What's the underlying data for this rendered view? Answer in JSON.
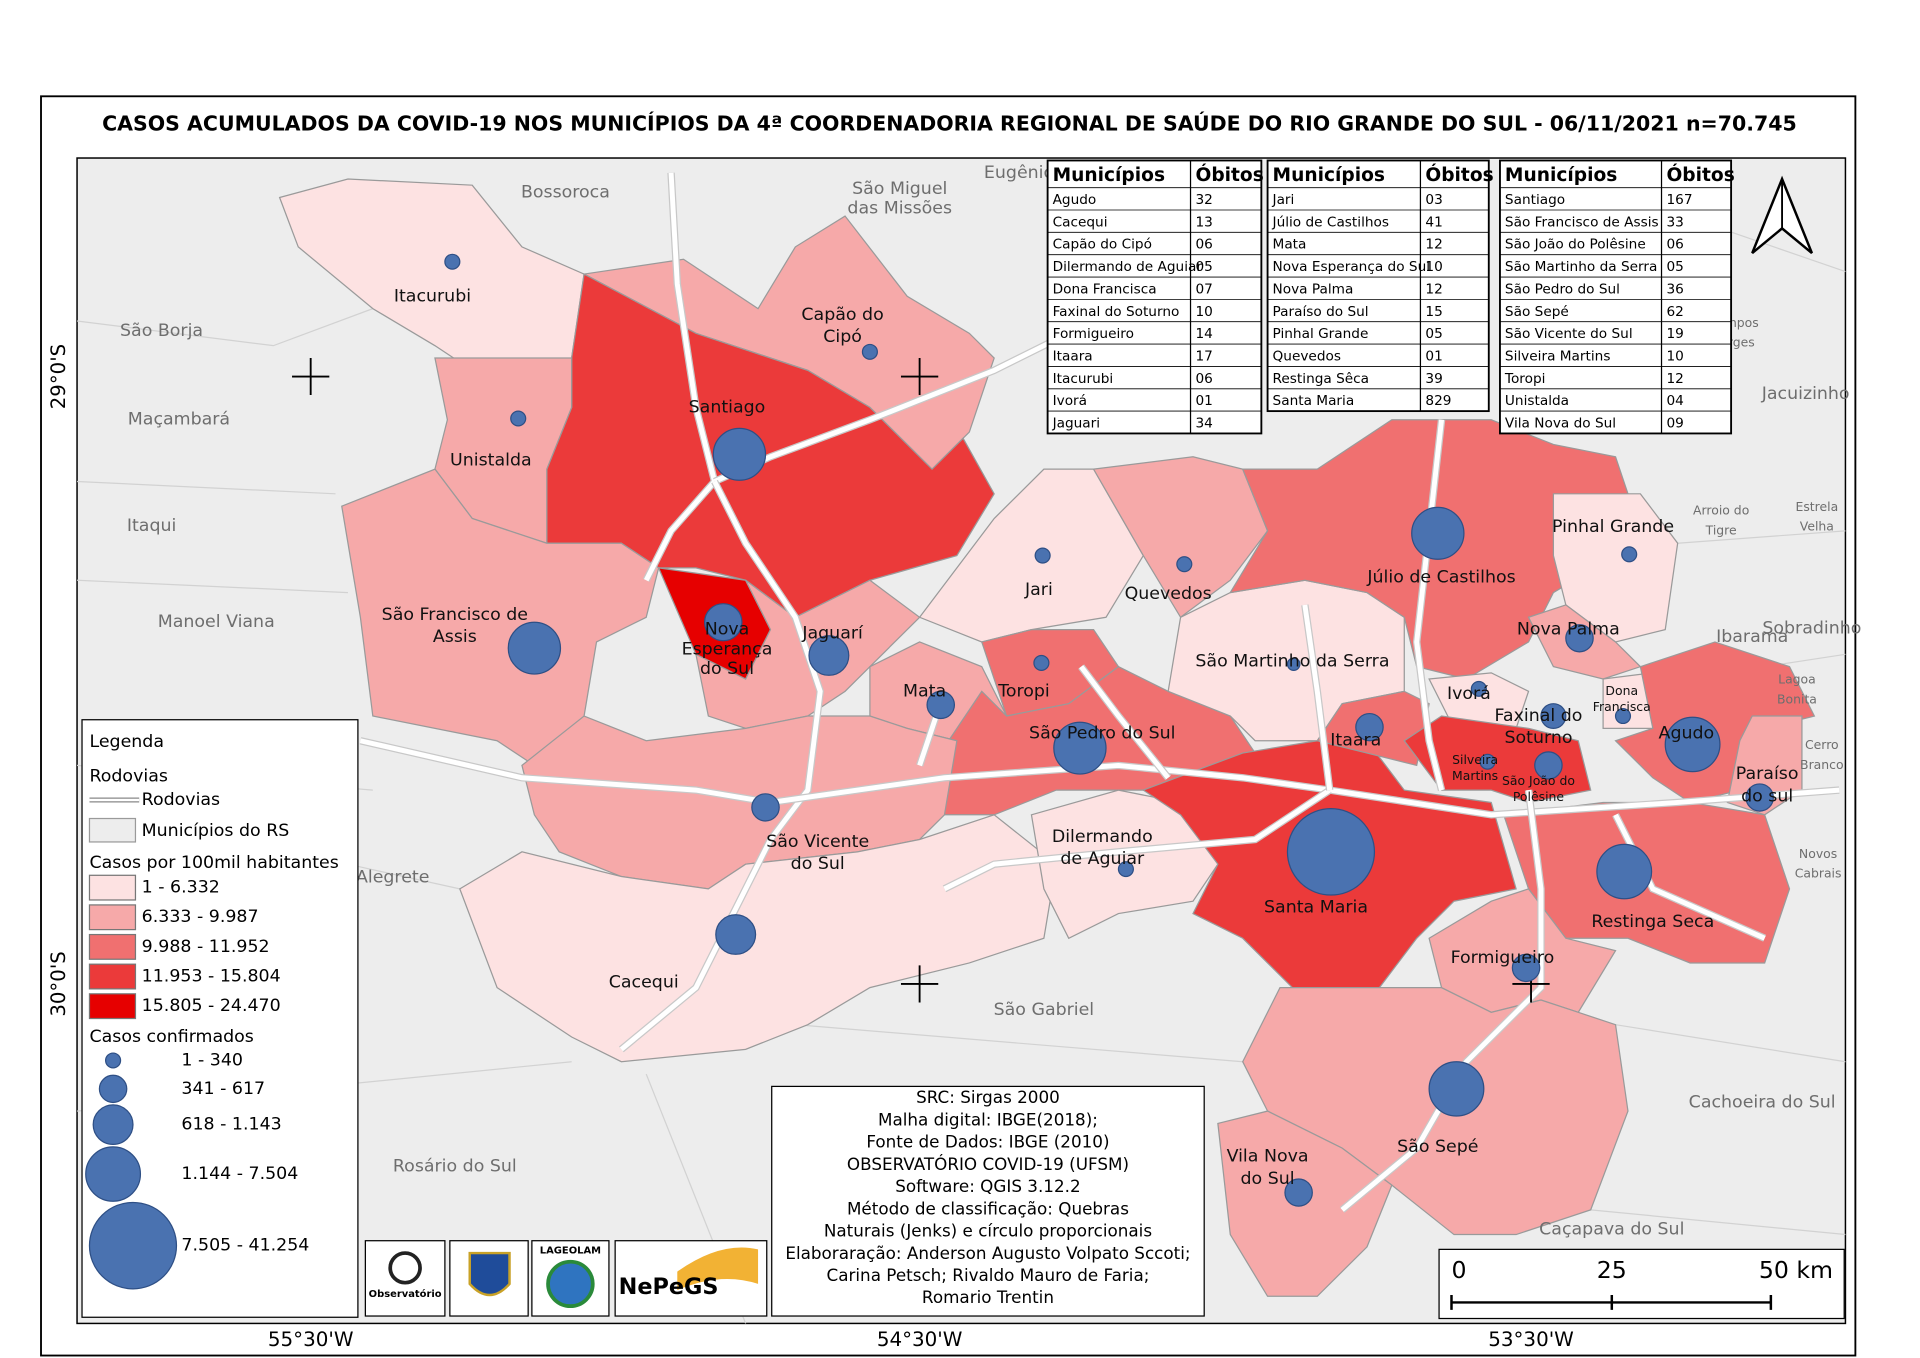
{
  "title": "CASOS ACUMULADOS DA COVID-19 NOS MUNICÍPIOS DA 4ª COORDENADORIA REGIONAL DE SAÚDE DO RIO GRANDE DO SUL - 06/11/2021 n=70.745",
  "tables": [
    {
      "header": [
        "Municípios",
        "Óbitos"
      ],
      "rows": [
        [
          "Agudo",
          "32"
        ],
        [
          "Cacequi",
          "13"
        ],
        [
          "Capão do Cipó",
          "06"
        ],
        [
          "Dilermando de Aguiar",
          "05"
        ],
        [
          "Dona Francisca",
          "07"
        ],
        [
          "Faxinal do Soturno",
          "10"
        ],
        [
          "Formigueiro",
          "14"
        ],
        [
          "Itaara",
          "17"
        ],
        [
          "Itacurubi",
          "06"
        ],
        [
          "Ivorá",
          "01"
        ],
        [
          "Jaguari",
          "34"
        ]
      ]
    },
    {
      "header": [
        "Municípios",
        "Óbitos"
      ],
      "rows": [
        [
          "Jari",
          "03"
        ],
        [
          "Júlio de Castilhos",
          "41"
        ],
        [
          "Mata",
          "12"
        ],
        [
          "Nova Esperança do Sul",
          "10"
        ],
        [
          "Nova Palma",
          "12"
        ],
        [
          "Paraíso do Sul",
          "15"
        ],
        [
          "Pinhal Grande",
          "05"
        ],
        [
          "Quevedos",
          "01"
        ],
        [
          "Restinga Sêca",
          "39"
        ],
        [
          "Santa Maria",
          "829"
        ]
      ]
    },
    {
      "header": [
        "Municípios",
        "Óbitos"
      ],
      "rows": [
        [
          "Santiago",
          "167"
        ],
        [
          "São Francisco de Assis",
          "33"
        ],
        [
          "São João do Polêsine",
          "06"
        ],
        [
          "São Martinho da Serra",
          "05"
        ],
        [
          "São Pedro do Sul",
          "36"
        ],
        [
          "São Sepé",
          "62"
        ],
        [
          "São Vicente do Sul",
          "19"
        ],
        [
          "Silveira Martins",
          "10"
        ],
        [
          "Toropi",
          "12"
        ],
        [
          "Unistalda",
          "04"
        ],
        [
          "Vila Nova do Sul",
          "09"
        ]
      ]
    }
  ],
  "municipality_labels": [
    [
      "Itacurubi"
    ],
    [
      "Capão do",
      "Cipó"
    ],
    [
      "Santiago"
    ],
    [
      "Unistalda"
    ],
    [
      "São Francisco de",
      "Assis"
    ],
    [
      "Nova",
      "Esperança",
      "do Sul"
    ],
    [
      "Jaguarí"
    ],
    [
      "Mata"
    ],
    [
      "Toropi"
    ],
    [
      "Jari"
    ],
    [
      "Quevedos"
    ],
    [
      "Júlio de Castilhos"
    ],
    [
      "Pinhal Grande"
    ],
    [
      "São Martinho da Serra"
    ],
    [
      "Nova Palma"
    ],
    [
      "Ivorá"
    ],
    [
      "Dona",
      "Francisca"
    ],
    [
      "Faxinal do",
      "Soturno"
    ],
    [
      "Agudo"
    ],
    [
      "Itaara"
    ],
    [
      "Silveira",
      "Martins"
    ],
    [
      "São João do",
      "Polêsine"
    ],
    [
      "Paraíso",
      "do sul"
    ],
    [
      "São Pedro do Sul"
    ],
    [
      "São Vicente",
      "do Sul"
    ],
    [
      "Dilermando",
      "de Aguiar"
    ],
    [
      "Santa Maria"
    ],
    [
      "Restinga Seca"
    ],
    [
      "Cacequi"
    ],
    [
      "Formigueiro"
    ],
    [
      "São Sepé"
    ],
    [
      "Vila Nova",
      "do Sul"
    ]
  ],
  "neighbor_labels": [
    [
      "Bossoroca"
    ],
    [
      "São Miguel",
      "das Missões"
    ],
    [
      "Eugênio"
    ],
    [
      "São Borja"
    ],
    [
      "Maçambará"
    ],
    [
      "Itaqui"
    ],
    [
      "Manoel Viana"
    ],
    [
      "Alegrete"
    ],
    [
      "Rosário do Sul"
    ],
    [
      "São Gabriel"
    ],
    [
      "Cachoeira do Sul"
    ],
    [
      "Caçapava do Sul"
    ],
    [
      "Campos",
      "borges"
    ],
    [
      "Jacuizinho"
    ],
    [
      "Arroio do",
      "Tigre"
    ],
    [
      "Estrela",
      "Velha"
    ],
    [
      "Ibarama"
    ],
    [
      "Sobradinho"
    ],
    [
      "Lagoa",
      "Bonita"
    ],
    [
      "Cerro",
      "Branco"
    ],
    [
      "Novos",
      "Cabrais"
    ]
  ],
  "graticule": {
    "lat": [
      "29°0'S",
      "30°0'S"
    ],
    "lon": [
      "55°30'W",
      "54°30'W",
      "53°30'W"
    ]
  },
  "legend": {
    "title": "Legenda",
    "roads_heading": "Rodovias",
    "roads_item": "Rodovias",
    "municipalities_item": "Municípios do RS",
    "rate_heading": "Casos por 100mil habitantes",
    "rate_classes": [
      {
        "label": "1 - 6.332",
        "color": "#fde2e2"
      },
      {
        "label": "6.333 - 9.987",
        "color": "#f6a9a9"
      },
      {
        "label": "9.988 - 11.952",
        "color": "#f07070"
      },
      {
        "label": "11.953 - 15.804",
        "color": "#eb3a3a"
      },
      {
        "label": "15.805 - 24.470",
        "color": "#e60000"
      }
    ],
    "cases_heading": "Casos confirmados",
    "cases_classes": [
      "1 - 340",
      "341 - 617",
      "618 - 1.143",
      "1.144 - 7.504",
      "7.505 - 41.254"
    ]
  },
  "credits": [
    "SRC: Sirgas 2000",
    "Malha digital: IBGE(2018);",
    "Fonte de Dados: IBGE (2010)",
    "OBSERVATÓRIO COVID-19 (UFSM)",
    "Software: QGIS 3.12.2",
    "Método de classificação: Quebras",
    "Naturais (Jenks) e círculo proporcionais",
    "Elaboraração: Anderson Augusto Volpato Sccoti;",
    "Carina Petsch; Rivaldo Mauro de Faria;",
    "Romario Trentin"
  ],
  "logos": [
    "Observatório",
    "LAGEOLAM",
    "NePeGS"
  ],
  "scale_bar": [
    "0",
    "25",
    "50 km"
  ]
}
